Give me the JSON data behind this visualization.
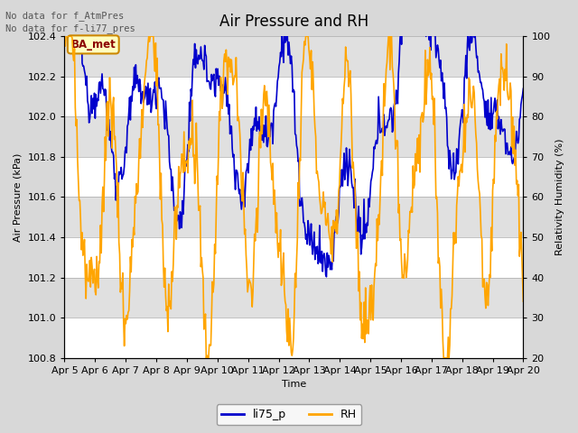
{
  "title": "Air Pressure and RH",
  "annotation_lines": [
    "No data for f_AtmPres",
    "No data for f⁻li77_pres"
  ],
  "box_label": "BA_met",
  "xlabel": "Time",
  "ylabel_left": "Air Pressure (kPa)",
  "ylabel_right": "Relativity Humidity (%)",
  "ylim_left": [
    100.8,
    102.4
  ],
  "ylim_right": [
    20,
    100
  ],
  "yticks_left": [
    100.8,
    101.0,
    101.2,
    101.4,
    101.6,
    101.8,
    102.0,
    102.2,
    102.4
  ],
  "yticks_right": [
    20,
    30,
    40,
    50,
    60,
    70,
    80,
    90,
    100
  ],
  "xtick_labels": [
    "Apr 5",
    "Apr 6",
    "Apr 7",
    "Apr 8",
    "Apr 9",
    "Apr 10",
    "Apr 11",
    "Apr 12",
    "Apr 13",
    "Apr 14",
    "Apr 15",
    "Apr 16",
    "Apr 17",
    "Apr 18",
    "Apr 19",
    "Apr 20"
  ],
  "line_li75p_color": "#0000cc",
  "line_RH_color": "#FFA500",
  "legend_labels": [
    "li75_p",
    "RH"
  ],
  "background_color": "#d8d8d8",
  "stripe_color_light": "#e8e8e8",
  "stripe_color_dark": "#d0d0d0",
  "title_fontsize": 12,
  "label_fontsize": 8,
  "tick_fontsize": 8,
  "annot_fontsize": 7.5
}
